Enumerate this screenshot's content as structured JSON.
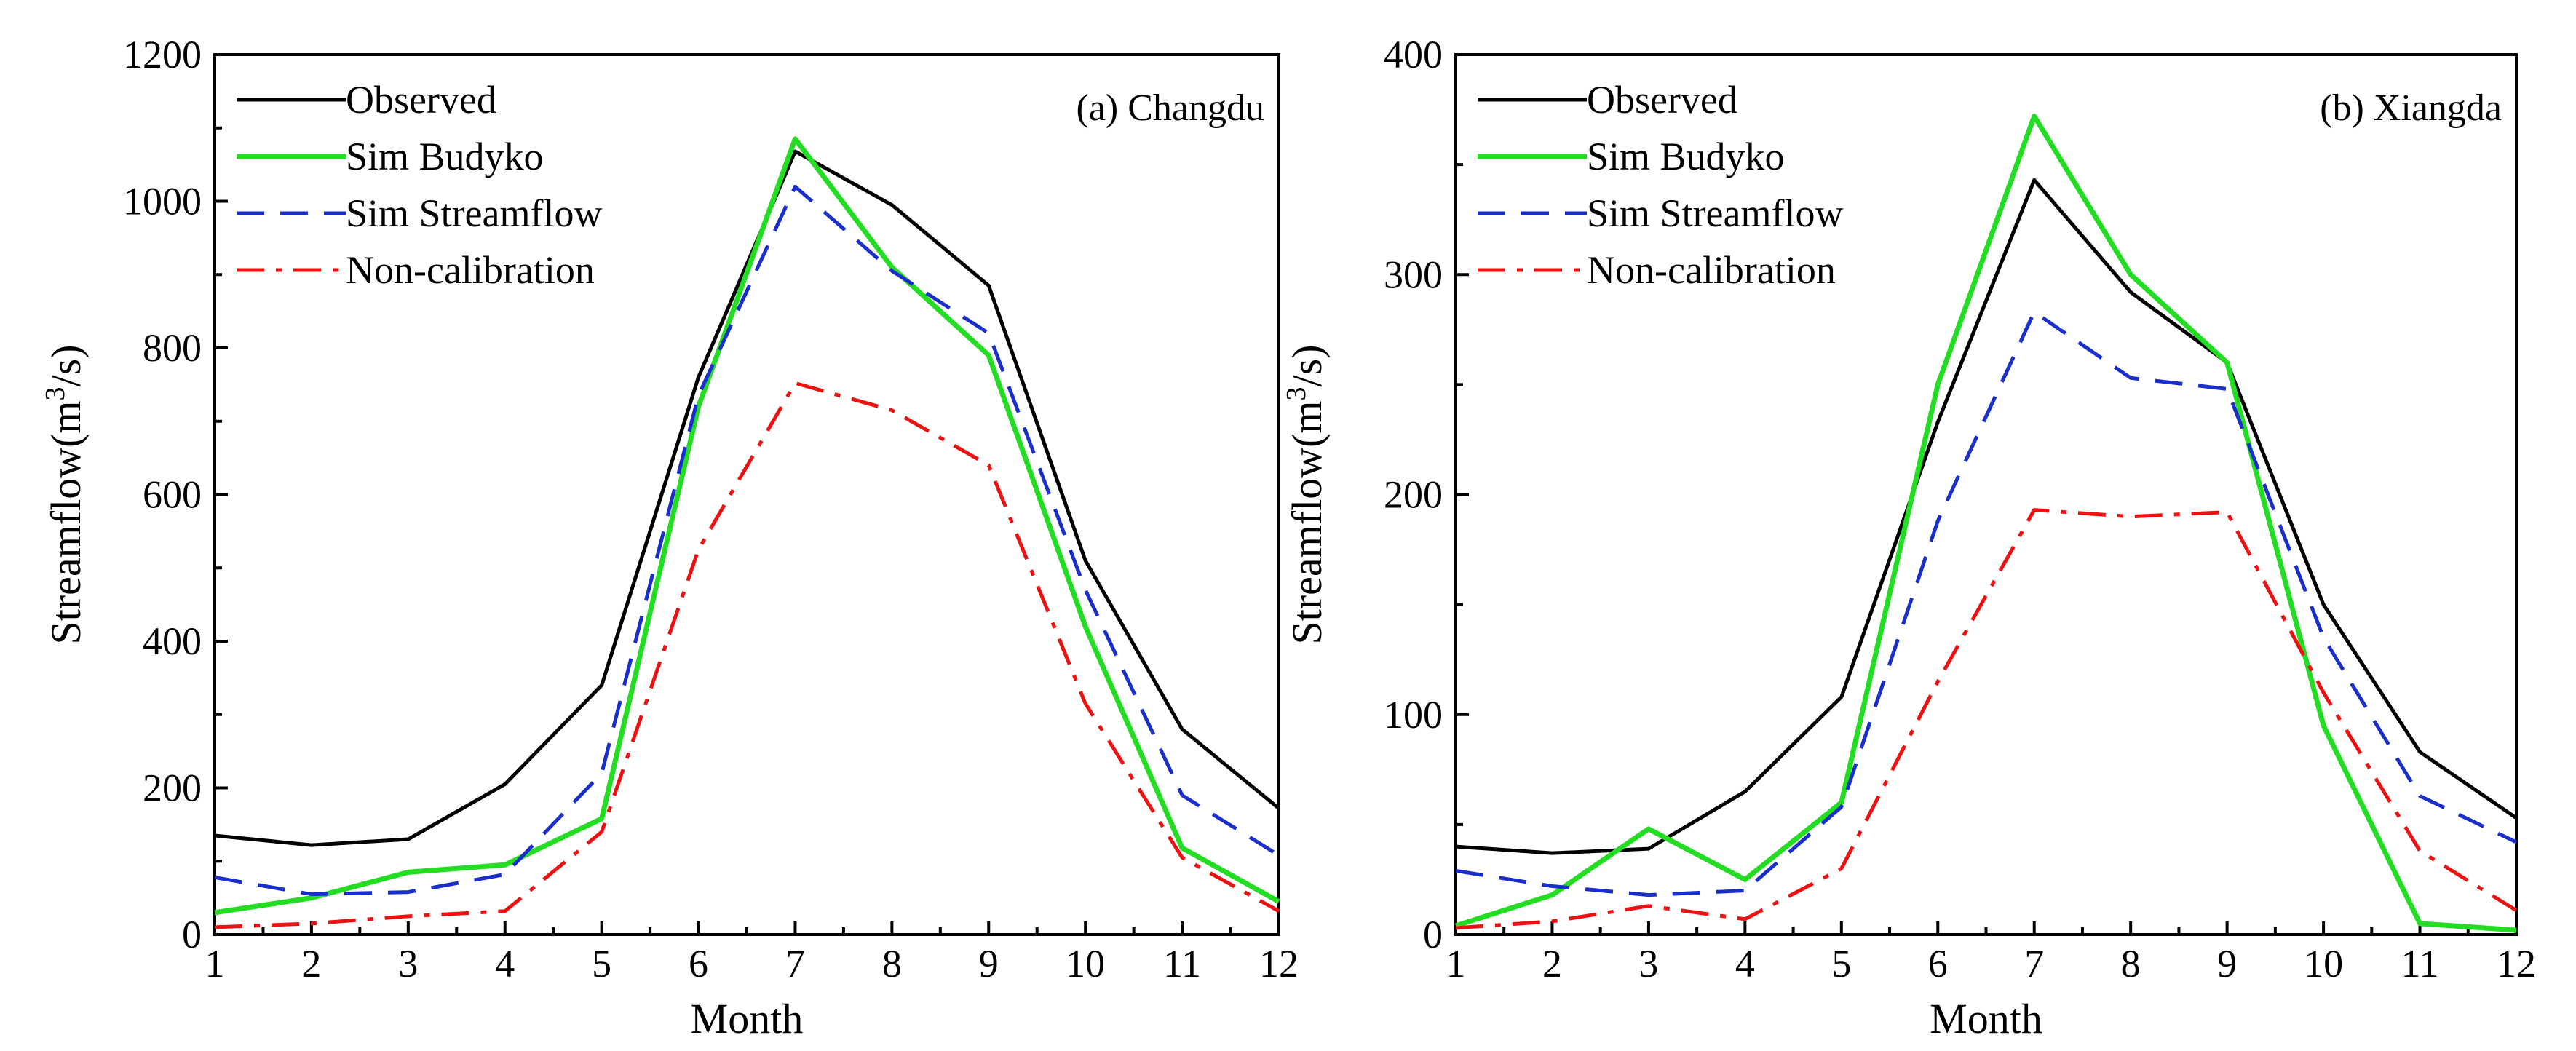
{
  "chart_data": [
    {
      "type": "line",
      "panel_label": "(a) Changdu",
      "xlabel": "Month",
      "ylabel": "Streamflow(m",
      "ylabel_sup": "3",
      "ylabel_tail": "/s)",
      "xlim": [
        1,
        12
      ],
      "ylim": [
        0,
        1200
      ],
      "xticks": [
        "1",
        "2",
        "3",
        "4",
        "5",
        "6",
        "7",
        "8",
        "9",
        "10",
        "11",
        "12"
      ],
      "yticks": [
        "0",
        "200",
        "400",
        "600",
        "800",
        "1000",
        "1200"
      ],
      "x": [
        1,
        2,
        3,
        4,
        5,
        6,
        7,
        8,
        9,
        10,
        11,
        12
      ],
      "legend_position": "top-left",
      "series": [
        {
          "name": "Observed",
          "color": "#000000",
          "style": "solid",
          "values": [
            135,
            122,
            130,
            205,
            340,
            760,
            1068,
            995,
            885,
            510,
            280,
            172
          ]
        },
        {
          "name": "Sim Budyko",
          "color": "#22dd22",
          "style": "solid",
          "values": [
            30,
            50,
            85,
            95,
            158,
            720,
            1085,
            910,
            790,
            420,
            118,
            45
          ]
        },
        {
          "name": "Sim Streamflow",
          "color": "#1a2ecc",
          "style": "dashed",
          "values": [
            78,
            55,
            58,
            82,
            220,
            735,
            1020,
            905,
            820,
            470,
            190,
            108
          ]
        },
        {
          "name": "Non-calibration",
          "color": "#ee1111",
          "style": "dashdot",
          "values": [
            10,
            15,
            25,
            32,
            140,
            525,
            752,
            715,
            640,
            315,
            105,
            32
          ]
        }
      ]
    },
    {
      "type": "line",
      "panel_label": "(b) Xiangda",
      "xlabel": "Month",
      "ylabel": "Streamflow(m",
      "ylabel_sup": "3",
      "ylabel_tail": "/s)",
      "xlim": [
        1,
        12
      ],
      "ylim": [
        0,
        400
      ],
      "xticks": [
        "1",
        "2",
        "3",
        "4",
        "5",
        "6",
        "7",
        "8",
        "9",
        "10",
        "11",
        "12"
      ],
      "yticks": [
        "0",
        "100",
        "200",
        "300",
        "400"
      ],
      "x": [
        1,
        2,
        3,
        4,
        5,
        6,
        7,
        8,
        9,
        10,
        11,
        12
      ],
      "legend_position": "top-left",
      "series": [
        {
          "name": "Observed",
          "color": "#000000",
          "style": "solid",
          "values": [
            40,
            37,
            39,
            65,
            108,
            233,
            343,
            292,
            260,
            150,
            83,
            53
          ]
        },
        {
          "name": "Sim Budyko",
          "color": "#22dd22",
          "style": "solid",
          "values": [
            4,
            18,
            48,
            25,
            60,
            250,
            372,
            300,
            260,
            95,
            5,
            2
          ]
        },
        {
          "name": "Sim Streamflow",
          "color": "#1a2ecc",
          "style": "dashed",
          "values": [
            29,
            22,
            18,
            20,
            58,
            188,
            283,
            253,
            248,
            135,
            63,
            42
          ]
        },
        {
          "name": "Non-calibration",
          "color": "#ee1111",
          "style": "dashdot",
          "values": [
            3,
            6,
            13,
            7,
            30,
            115,
            193,
            190,
            192,
            110,
            38,
            11
          ]
        }
      ]
    }
  ]
}
